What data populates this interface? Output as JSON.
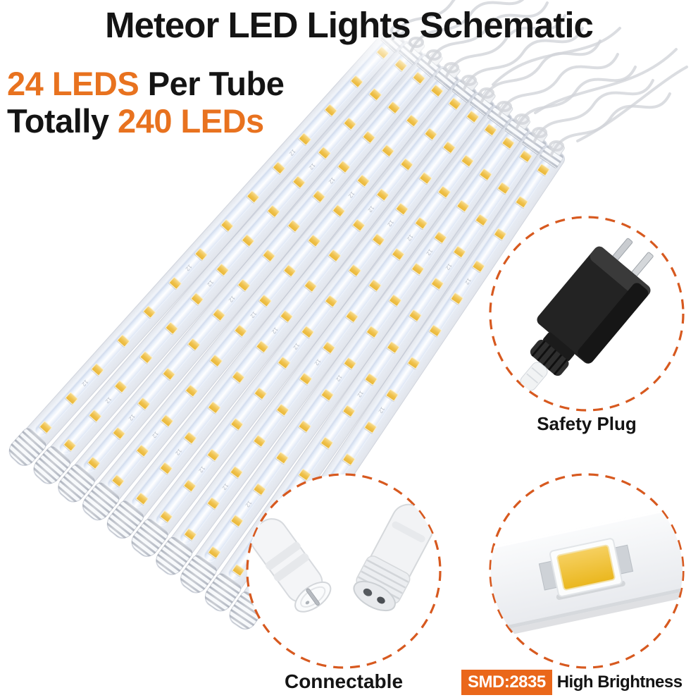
{
  "title": "Meteor LED Lights Schematic",
  "headline": {
    "count_per_tube": "24 LEDS",
    "per_tube_suffix": " Per Tube",
    "total_prefix": "Totally ",
    "total_count": "240 LEDs"
  },
  "tubes": {
    "count": 10,
    "visible_leds_per_tube": 14,
    "strip_marking": "12"
  },
  "insets": {
    "safety_plug": {
      "label": "Safety Plug"
    },
    "connectable": {
      "label": "Connectable"
    },
    "smd": {
      "badge": "SMD:2835",
      "label": "High Brightness"
    }
  },
  "colors": {
    "accent_orange": "#E8721F",
    "dash_orange": "#D7591F",
    "badge_orange": "#EA671A",
    "led_yellow": "#F0C14B",
    "text_black": "#141414"
  }
}
